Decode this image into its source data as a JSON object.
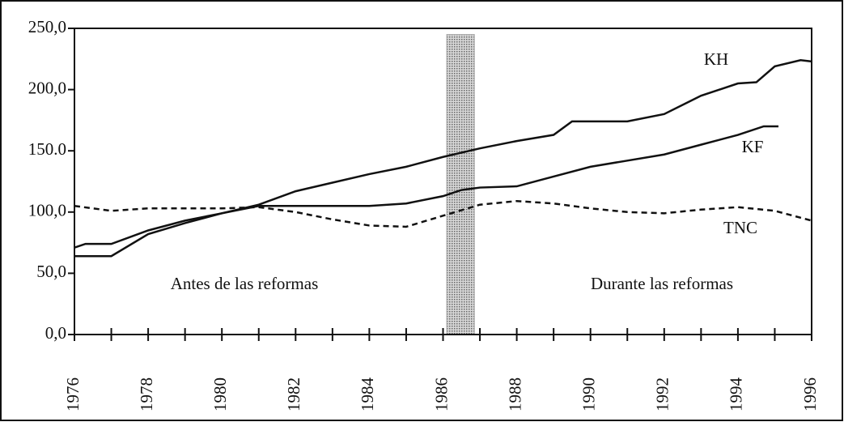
{
  "chart_data": {
    "type": "line",
    "xlim": [
      1976,
      1996
    ],
    "xticks": [
      1976,
      1978,
      1980,
      1982,
      1984,
      1986,
      1988,
      1990,
      1992,
      1994,
      1996
    ],
    "xticks_minor": [
      1977,
      1979,
      1981,
      1983,
      1985,
      1987,
      1989,
      1991,
      1993,
      1995
    ],
    "ylim": [
      0,
      250
    ],
    "yticks": [
      {
        "value": 0,
        "label": "0,0"
      },
      {
        "value": 50,
        "label": "50,0"
      },
      {
        "value": 100,
        "label": "100,0"
      },
      {
        "value": 150,
        "label": "150.0"
      },
      {
        "value": 200,
        "label": "200,0"
      },
      {
        "value": 250,
        "label": "250,0"
      }
    ],
    "series": [
      {
        "name": "KH",
        "color": "#111111",
        "dash": false,
        "x": [
          1976,
          1976.3,
          1977,
          1978,
          1979,
          1980,
          1981,
          1982,
          1983,
          1984,
          1985,
          1986,
          1987,
          1988,
          1989,
          1989.5,
          1990,
          1991,
          1992,
          1993,
          1994,
          1994.5,
          1995,
          1995.7,
          1996
        ],
        "values": [
          71,
          74,
          74,
          85,
          93,
          99,
          106,
          117,
          124,
          131,
          137,
          145,
          152,
          158,
          163,
          174,
          174,
          174,
          180,
          195,
          205,
          206,
          219,
          224,
          223
        ]
      },
      {
        "name": "KF",
        "color": "#111111",
        "dash": false,
        "x": [
          1976,
          1977,
          1978,
          1979,
          1980,
          1981,
          1982,
          1983,
          1984,
          1985,
          1986,
          1986.5,
          1987,
          1988,
          1989,
          1990,
          1991,
          1992,
          1993,
          1994,
          1994.7,
          1995.1
        ],
        "values": [
          64,
          64,
          82,
          91,
          99,
          105,
          105,
          105,
          105,
          107,
          113,
          118,
          120,
          121,
          129,
          137,
          142,
          147,
          155,
          163,
          170,
          170
        ]
      },
      {
        "name": "TNC",
        "color": "#111111",
        "dash": true,
        "x": [
          1976,
          1977,
          1978,
          1979,
          1980,
          1981,
          1982,
          1983,
          1984,
          1985,
          1986,
          1987,
          1988,
          1989,
          1990,
          1991,
          1992,
          1993,
          1994,
          1995,
          1996
        ],
        "values": [
          105,
          101,
          103,
          103,
          103,
          104,
          100,
          94,
          89,
          88,
          97,
          106,
          109,
          107,
          103,
          100,
          99,
          102,
          104,
          101,
          93
        ]
      }
    ],
    "highlight": {
      "xlim": [
        1986.1,
        1986.85
      ],
      "ylim": [
        0,
        245
      ],
      "color": "#aaaaaa"
    },
    "annotations": [
      "Antes de las reformas",
      "Durante las reformas"
    ]
  }
}
